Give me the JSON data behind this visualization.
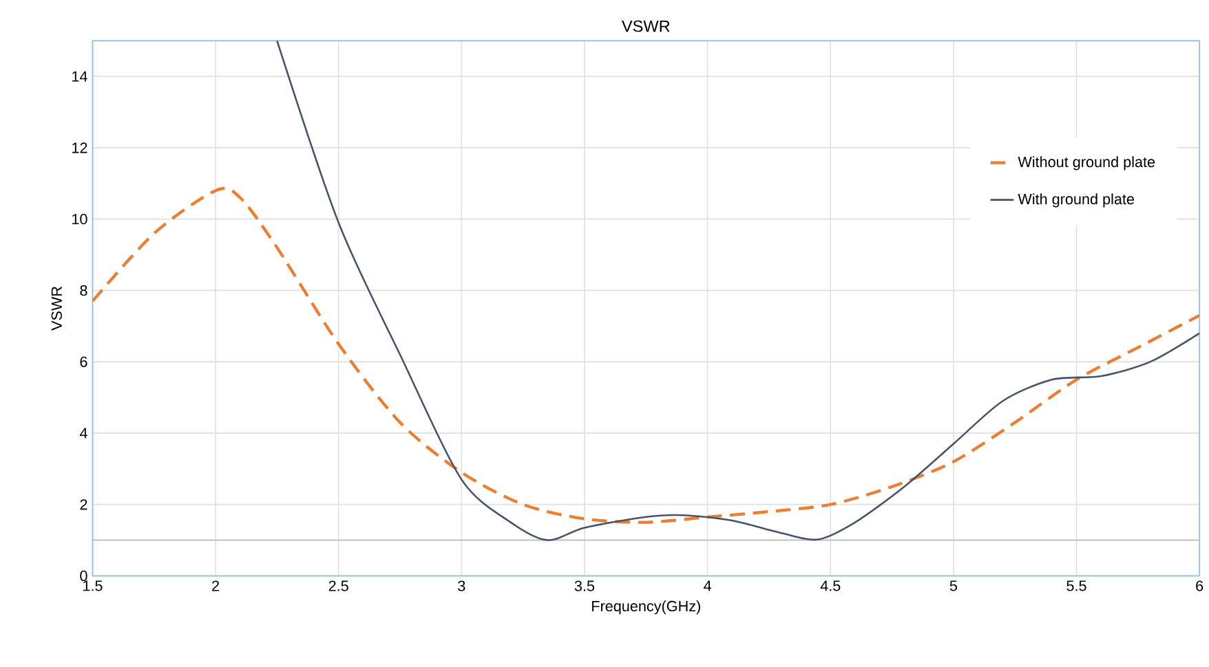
{
  "chart_data": {
    "type": "line",
    "title": "VSWR",
    "xlabel": "Frequency(GHz)",
    "ylabel": "VSWR",
    "xlim": [
      1.5,
      6
    ],
    "xticks": [
      1.5,
      2,
      2.5,
      3,
      3.5,
      4,
      4.5,
      5,
      5.5,
      6
    ],
    "ylim": [
      0,
      15
    ],
    "yticks": [
      0,
      2,
      4,
      6,
      8,
      10,
      12,
      14
    ],
    "grid": true,
    "legend": "top right",
    "ref_lines": [
      {
        "axis": "y",
        "value": 1,
        "color": "#bfbfbf"
      }
    ],
    "series": [
      {
        "name": "Without ground plate",
        "color": "#ed7d31",
        "line_style": "dashed",
        "x": [
          1.5,
          1.75,
          2.0,
          2.1,
          2.25,
          2.5,
          2.75,
          3.0,
          3.25,
          3.5,
          3.75,
          4.0,
          4.25,
          4.5,
          4.75,
          5.0,
          5.25,
          5.5,
          5.75,
          6.0
        ],
        "values": [
          7.7,
          9.6,
          10.8,
          10.6,
          9.2,
          6.5,
          4.3,
          2.9,
          2.0,
          1.6,
          1.5,
          1.65,
          1.8,
          2.0,
          2.5,
          3.2,
          4.3,
          5.5,
          6.4,
          7.3
        ]
      },
      {
        "name": "With ground plate",
        "color": "#44546a",
        "line_style": "solid",
        "x": [
          2.25,
          2.5,
          2.75,
          3.0,
          3.2,
          3.35,
          3.5,
          3.75,
          3.9,
          4.1,
          4.3,
          4.45,
          4.6,
          4.8,
          5.0,
          5.2,
          5.4,
          5.6,
          5.8,
          6.0
        ],
        "values": [
          15,
          9.9,
          6.2,
          2.7,
          1.5,
          1.0,
          1.35,
          1.65,
          1.7,
          1.55,
          1.2,
          1.02,
          1.5,
          2.5,
          3.7,
          4.9,
          5.5,
          5.6,
          6.0,
          6.8
        ]
      }
    ]
  }
}
